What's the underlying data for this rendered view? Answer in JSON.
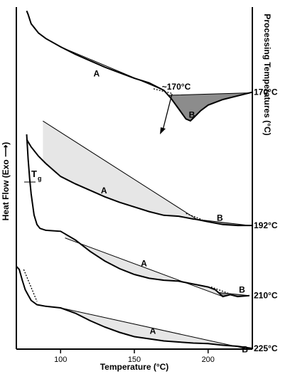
{
  "chart_data": {
    "type": "line",
    "xlabel": "Temperature (°C)",
    "ylabel": "Heat Flow (Exo ⟶)",
    "right_label": "Processing Temperatures (°C)",
    "xlim": [
      70,
      230
    ],
    "x_ticks": [
      100,
      150,
      200
    ],
    "y_units": "arbitrary",
    "annotation": "~170°C",
    "tg_label": "T",
    "tg_sub": "g",
    "series": [
      {
        "name": "170°C",
        "label": "170°C",
        "points": [
          [
            77,
            98
          ],
          [
            78,
            96
          ],
          [
            80,
            91
          ],
          [
            85,
            86
          ],
          [
            90,
            83
          ],
          [
            100,
            78.5
          ],
          [
            110,
            74.5
          ],
          [
            120,
            71
          ],
          [
            130,
            67.5
          ],
          [
            140,
            64.5
          ],
          [
            150,
            61.5
          ],
          [
            160,
            59
          ],
          [
            165,
            57
          ],
          [
            170,
            55
          ],
          [
            175,
            50.5
          ],
          [
            180,
            45
          ],
          [
            185,
            39.5
          ],
          [
            188,
            38.5
          ],
          [
            190,
            40
          ],
          [
            195,
            44
          ],
          [
            200,
            47
          ],
          [
            210,
            50
          ],
          [
            220,
            52
          ],
          [
            230,
            54
          ]
        ],
        "baseline": [
          [
            100,
            78.5
          ],
          [
            170,
            55
          ]
        ],
        "region_A": {
          "label": "A",
          "from": 100,
          "to": 170
        },
        "region_B": {
          "label": "B",
          "from": 173,
          "to": 228,
          "shaded": true
        },
        "tangent": [
          [
            163,
            55.8
          ],
          [
            176,
            53.2
          ]
        ]
      },
      {
        "name": "192°C",
        "label": "192°C",
        "points": [
          [
            77,
            63
          ],
          [
            80,
            59
          ],
          [
            85,
            54
          ],
          [
            90,
            50
          ],
          [
            95,
            46.5
          ],
          [
            100,
            43
          ],
          [
            110,
            39
          ],
          [
            120,
            35.5
          ],
          [
            130,
            32
          ],
          [
            140,
            29
          ],
          [
            150,
            26.5
          ],
          [
            160,
            24
          ],
          [
            170,
            22
          ],
          [
            180,
            21.5
          ],
          [
            190,
            20
          ],
          [
            192,
            19.8
          ],
          [
            200,
            18.5
          ],
          [
            210,
            17
          ],
          [
            220,
            16.5
          ],
          [
            230,
            16.5
          ]
        ],
        "baseline": [
          [
            88,
            73
          ],
          [
            192,
            20
          ]
        ],
        "region_A": {
          "label": "A",
          "from": 88,
          "to": 192
        },
        "region_B": {
          "label": "B",
          "from": 192,
          "to": 228,
          "shaded": true
        },
        "tangent": [
          [
            185,
            23
          ],
          [
            196,
            19.6
          ]
        ]
      },
      {
        "name": "210°C",
        "label": "210°C",
        "points": [
          [
            77,
            93
          ],
          [
            78,
            80
          ],
          [
            79,
            70
          ],
          [
            80,
            62
          ],
          [
            82,
            51
          ],
          [
            84,
            46
          ],
          [
            86,
            44
          ],
          [
            90,
            43
          ],
          [
            100,
            42.5
          ],
          [
            110,
            38
          ],
          [
            120,
            32
          ],
          [
            130,
            27
          ],
          [
            140,
            23
          ],
          [
            150,
            20
          ],
          [
            160,
            18
          ],
          [
            170,
            17
          ],
          [
            180,
            16.5
          ],
          [
            190,
            15
          ],
          [
            200,
            13.5
          ],
          [
            205,
            12
          ],
          [
            210,
            8.5
          ],
          [
            215,
            9.5
          ],
          [
            220,
            8.5
          ],
          [
            228,
            9
          ]
        ],
        "baseline": [
          [
            103,
            39
          ],
          [
            210,
            8.5
          ]
        ],
        "region_A": {
          "label": "A",
          "from": 103,
          "to": 210
        },
        "region_B": {
          "label": "B",
          "from": 207,
          "to": 228,
          "shaded": true
        },
        "tangent": [
          [
            202,
            13.5
          ],
          [
            215,
            9.8
          ]
        ]
      },
      {
        "name": "225°C",
        "label": "225°C",
        "points": [
          [
            70,
            77
          ],
          [
            72,
            74
          ],
          [
            74,
            64
          ],
          [
            76,
            55
          ],
          [
            78,
            50
          ],
          [
            80,
            45
          ],
          [
            84,
            41
          ],
          [
            90,
            39.5
          ],
          [
            100,
            38
          ],
          [
            110,
            33
          ],
          [
            120,
            26
          ],
          [
            130,
            20
          ],
          [
            140,
            15
          ],
          [
            150,
            11
          ],
          [
            160,
            9
          ],
          [
            170,
            7
          ],
          [
            180,
            6
          ],
          [
            190,
            5
          ],
          [
            200,
            4.5
          ],
          [
            210,
            3
          ],
          [
            220,
            2
          ],
          [
            225,
            1
          ],
          [
            230,
            0
          ]
        ],
        "baseline": [
          [
            100,
            38
          ],
          [
            225,
            0
          ]
        ],
        "region_A": {
          "label": "A",
          "from": 100,
          "to": 225
        },
        "region_B": {
          "label": "B",
          "from": 205,
          "to": 225,
          "shaded": false
        },
        "tangent": [
          [
            75,
            74
          ],
          [
            84,
            44
          ]
        ]
      }
    ]
  }
}
